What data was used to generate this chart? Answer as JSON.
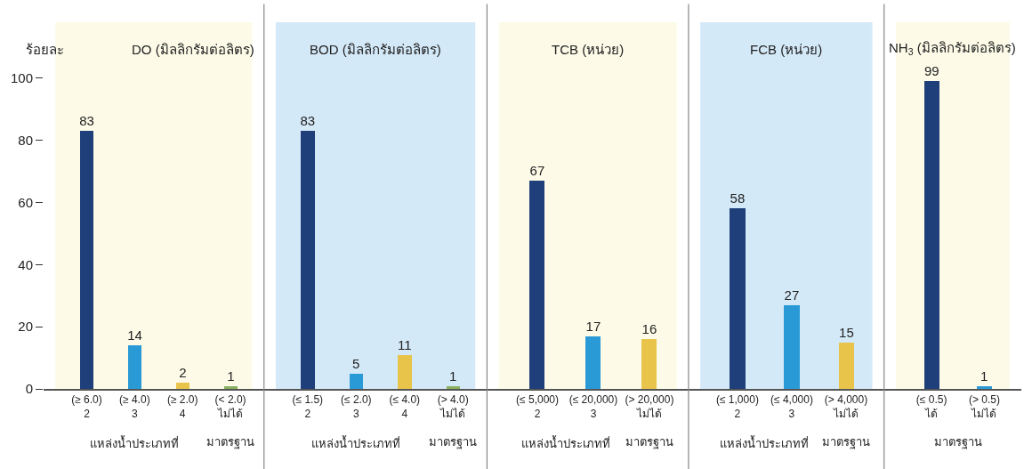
{
  "chart_data": [
    {
      "type": "bar",
      "title": "DO (มิลลิกรัมต่อลิตร)",
      "ylabel": "ร้อยละ",
      "categories": [
        "(≥ 6.0)\n2",
        "(≥ 4.0)\n3",
        "(≥ 2.0)\n4",
        "(< 2.0)\nไม่ได้"
      ],
      "values": [
        83,
        14,
        2,
        1
      ],
      "colors": [
        "#1f3f7a",
        "#2a9ad6",
        "#e8c44a",
        "#8ab060"
      ],
      "ylim": [
        0,
        118
      ],
      "yticks": [
        0,
        20,
        40,
        60,
        80,
        100
      ],
      "data_labels": true,
      "annotations": [
        "แหล่งน้ำประเภทที่",
        "มาตรฐาน"
      ]
    },
    {
      "type": "bar",
      "title": "BOD (มิลลิกรัมต่อลิตร)",
      "categories": [
        "(≤ 1.5)\n2",
        "(≤ 2.0)\n3",
        "(≤ 4.0)\n4",
        "(> 4.0)\nไม่ได้"
      ],
      "values": [
        83,
        5,
        11,
        1
      ],
      "colors": [
        "#1f3f7a",
        "#2a9ad6",
        "#e8c44a",
        "#8ab060"
      ],
      "ylim": [
        0,
        118
      ],
      "tick_labels": "x",
      "data_labels": true,
      "annotations": [
        "แหล่งน้ำประเภทที่",
        "มาตรฐาน"
      ]
    },
    {
      "type": "bar",
      "title": "TCB (หน่วย)",
      "categories": [
        "(≤ 5,000)\n2",
        "(≤ 20,000)\n3",
        "(> 20,000)\nไม่ได้"
      ],
      "values": [
        67,
        17,
        16
      ],
      "colors": [
        "#1f3f7a",
        "#2a9ad6",
        "#e8c44a"
      ],
      "ylim": [
        0,
        118
      ],
      "tick_labels": "x",
      "data_labels": true,
      "annotations": [
        "แหล่งน้ำประเภทที่",
        "มาตรฐาน"
      ]
    },
    {
      "type": "bar",
      "title": "FCB (หน่วย)",
      "categories": [
        "(≤ 1,000)\n2",
        "(≤ 4,000)\n3",
        "(> 4,000)\nไม่ได้"
      ],
      "values": [
        58,
        27,
        15
      ],
      "colors": [
        "#1f3f7a",
        "#2a9ad6",
        "#e8c44a"
      ],
      "ylim": [
        0,
        118
      ],
      "tick_labels": "x",
      "data_labels": true,
      "annotations": [
        "แหล่งน้ำประเภทที่",
        "มาตรฐาน"
      ]
    },
    {
      "type": "bar",
      "title": "NH$_{3}$ (มิลลิกรัมต่อลิตร)",
      "categories": [
        "(≤ 0.5)\nได้",
        "(> 0.5)\nไม่ได้"
      ],
      "values": [
        99,
        1
      ],
      "colors": [
        "#1f3f7a",
        "#2a9ad6"
      ],
      "ylim": [
        0,
        118
      ],
      "tick_labels": "x",
      "data_labels": true,
      "annotations": [
        "มาตรฐาน"
      ]
    }
  ]
}
